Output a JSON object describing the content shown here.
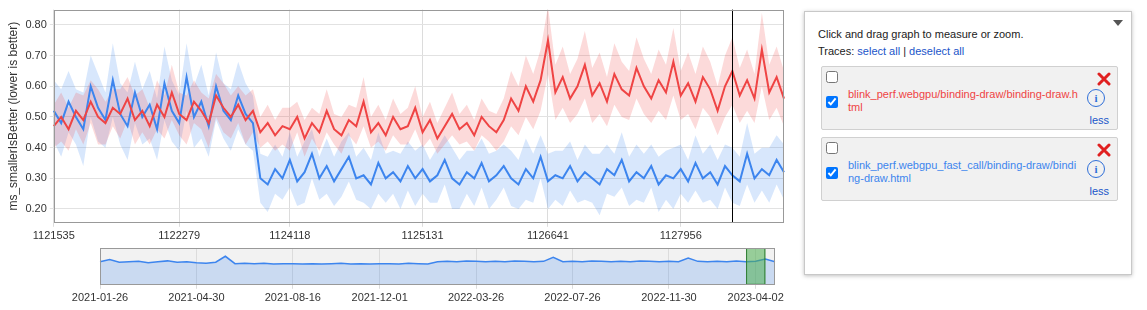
{
  "chart_data": [
    {
      "type": "line",
      "y_label": "ms_smallerIsBetter (lower is better)",
      "categories": [
        "1121535",
        null,
        null,
        null,
        null,
        null,
        null,
        null,
        null,
        null,
        null,
        null,
        null,
        null,
        null,
        null,
        null,
        "1122279",
        null,
        null,
        null,
        null,
        null,
        null,
        null,
        null,
        null,
        null,
        null,
        null,
        null,
        null,
        "1124118",
        null,
        null,
        null,
        null,
        null,
        null,
        null,
        null,
        null,
        null,
        null,
        null,
        null,
        null,
        null,
        null,
        null,
        "1125131",
        null,
        null,
        null,
        null,
        null,
        null,
        null,
        null,
        null,
        null,
        null,
        null,
        null,
        null,
        null,
        null,
        "1126641",
        null,
        null,
        null,
        null,
        null,
        null,
        null,
        null,
        null,
        null,
        null,
        null,
        null,
        null,
        null,
        null,
        null,
        "1127956",
        null,
        null,
        null,
        null,
        null,
        null,
        null,
        null,
        null,
        null,
        null,
        null,
        null,
        null
      ],
      "series": [
        {
          "name": "blink_perf.webgpu/binding-draw/binding-draw.html",
          "color": "#ef4444",
          "values": [
            0.47,
            0.5,
            0.46,
            0.52,
            0.49,
            0.55,
            0.5,
            0.48,
            0.53,
            0.51,
            0.56,
            0.49,
            0.52,
            0.47,
            0.54,
            0.5,
            0.58,
            0.51,
            0.49,
            0.55,
            0.52,
            0.48,
            0.57,
            0.53,
            0.5,
            0.54,
            0.49,
            0.52,
            0.45,
            0.48,
            0.44,
            0.47,
            0.46,
            0.5,
            0.43,
            0.48,
            0.45,
            0.52,
            0.46,
            0.44,
            0.49,
            0.47,
            0.55,
            0.45,
            0.48,
            0.44,
            0.5,
            0.46,
            0.47,
            0.53,
            0.45,
            0.49,
            0.43,
            0.47,
            0.51,
            0.46,
            0.48,
            0.44,
            0.5,
            0.47,
            0.45,
            0.49,
            0.56,
            0.52,
            0.6,
            0.55,
            0.62,
            0.75,
            0.58,
            0.63,
            0.56,
            0.6,
            0.67,
            0.57,
            0.61,
            0.55,
            0.64,
            0.59,
            0.57,
            0.66,
            0.6,
            0.56,
            0.62,
            0.58,
            0.68,
            0.57,
            0.61,
            0.55,
            0.63,
            0.59,
            0.52,
            0.6,
            0.65,
            0.57,
            0.62,
            0.56,
            0.72,
            0.58,
            0.63,
            0.56
          ],
          "errors": [
            0.07,
            0.08,
            0.07,
            0.06,
            0.08,
            0.07,
            0.09,
            0.07,
            0.06,
            0.08,
            0.07,
            0.08,
            0.07,
            0.06,
            0.08,
            0.07,
            0.09,
            0.07,
            0.08,
            0.07,
            0.06,
            0.08,
            0.07,
            0.08,
            0.07,
            0.06,
            0.08,
            0.07,
            0.05,
            0.06,
            0.05,
            0.06,
            0.07,
            0.05,
            0.06,
            0.05,
            0.06,
            0.07,
            0.05,
            0.06,
            0.05,
            0.06,
            0.08,
            0.05,
            0.06,
            0.05,
            0.06,
            0.05,
            0.06,
            0.07,
            0.05,
            0.06,
            0.05,
            0.06,
            0.07,
            0.05,
            0.06,
            0.05,
            0.06,
            0.05,
            0.06,
            0.07,
            0.09,
            0.08,
            0.1,
            0.09,
            0.1,
            0.11,
            0.09,
            0.1,
            0.08,
            0.09,
            0.11,
            0.09,
            0.1,
            0.08,
            0.1,
            0.09,
            0.08,
            0.1,
            0.09,
            0.08,
            0.1,
            0.09,
            0.11,
            0.08,
            0.1,
            0.09,
            0.1,
            0.09,
            0.08,
            0.1,
            0.11,
            0.09,
            0.1,
            0.08,
            0.12,
            0.09,
            0.1,
            0.09
          ]
        },
        {
          "name": "blink_perf.webgpu_fast_call/binding-draw/binding-draw.html",
          "color": "#3d85ee",
          "values": [
            0.52,
            0.48,
            0.55,
            0.5,
            0.46,
            0.6,
            0.53,
            0.49,
            0.62,
            0.51,
            0.47,
            0.58,
            0.5,
            0.54,
            0.46,
            0.61,
            0.52,
            0.48,
            0.63,
            0.5,
            0.55,
            0.47,
            0.6,
            0.52,
            0.49,
            0.57,
            0.51,
            0.48,
            0.3,
            0.28,
            0.33,
            0.3,
            0.36,
            0.29,
            0.32,
            0.38,
            0.3,
            0.34,
            0.29,
            0.33,
            0.37,
            0.3,
            0.31,
            0.28,
            0.35,
            0.3,
            0.32,
            0.29,
            0.34,
            0.3,
            0.33,
            0.29,
            0.31,
            0.36,
            0.3,
            0.28,
            0.32,
            0.3,
            0.35,
            0.29,
            0.31,
            0.34,
            0.3,
            0.28,
            0.33,
            0.3,
            0.37,
            0.29,
            0.31,
            0.3,
            0.34,
            0.29,
            0.32,
            0.3,
            0.28,
            0.33,
            0.31,
            0.36,
            0.29,
            0.32,
            0.3,
            0.34,
            0.28,
            0.31,
            0.3,
            0.33,
            0.29,
            0.35,
            0.3,
            0.32,
            0.28,
            0.34,
            0.31,
            0.29,
            0.38,
            0.3,
            0.33,
            0.31,
            0.36,
            0.32
          ],
          "errors": [
            0.1,
            0.11,
            0.1,
            0.09,
            0.12,
            0.1,
            0.11,
            0.09,
            0.12,
            0.1,
            0.11,
            0.1,
            0.09,
            0.11,
            0.1,
            0.12,
            0.1,
            0.09,
            0.11,
            0.1,
            0.12,
            0.1,
            0.11,
            0.09,
            0.1,
            0.11,
            0.1,
            0.09,
            0.08,
            0.09,
            0.08,
            0.07,
            0.09,
            0.08,
            0.1,
            0.08,
            0.07,
            0.09,
            0.08,
            0.09,
            0.08,
            0.07,
            0.09,
            0.08,
            0.1,
            0.08,
            0.07,
            0.09,
            0.08,
            0.09,
            0.08,
            0.07,
            0.09,
            0.08,
            0.1,
            0.08,
            0.07,
            0.09,
            0.08,
            0.09,
            0.08,
            0.07,
            0.09,
            0.08,
            0.1,
            0.08,
            0.07,
            0.09,
            0.08,
            0.09,
            0.08,
            0.07,
            0.09,
            0.08,
            0.1,
            0.08,
            0.07,
            0.09,
            0.08,
            0.09,
            0.08,
            0.07,
            0.09,
            0.08,
            0.1,
            0.08,
            0.07,
            0.09,
            0.08,
            0.09,
            0.08,
            0.07,
            0.09,
            0.08,
            0.1,
            0.08,
            0.07,
            0.09,
            0.08,
            0.09
          ]
        }
      ],
      "ylim": [
        0.155,
        0.85
      ],
      "yticks": [
        {
          "value": 0.2,
          "label": "0.20"
        },
        {
          "value": 0.3,
          "label": "0.30"
        },
        {
          "value": 0.4,
          "label": "0.40"
        },
        {
          "value": 0.5,
          "label": "0.50"
        },
        {
          "value": 0.6,
          "label": "0.60"
        },
        {
          "value": 0.7,
          "label": "0.70"
        },
        {
          "value": 0.8,
          "label": "0.80"
        }
      ],
      "selected_point": 92,
      "grid": true
    },
    {
      "type": "line",
      "categories": [
        "2021-01-26",
        null,
        null,
        null,
        null,
        null,
        null,
        null,
        null,
        null,
        "2021-04-30",
        null,
        null,
        null,
        null,
        null,
        null,
        null,
        null,
        null,
        "2021-08-16",
        null,
        null,
        null,
        null,
        null,
        null,
        null,
        null,
        "2021-12-01",
        null,
        null,
        null,
        null,
        null,
        null,
        null,
        null,
        null,
        "2022-03-26",
        null,
        null,
        null,
        null,
        null,
        null,
        null,
        null,
        null,
        "2022-07-26",
        null,
        null,
        null,
        null,
        null,
        null,
        null,
        null,
        null,
        "2022-11-30",
        null,
        null,
        null,
        null,
        null,
        null,
        null,
        null,
        "2023-04-02",
        null,
        null
      ],
      "series": [
        {
          "color": "#3d85ee",
          "values": [
            0.5,
            0.55,
            0.49,
            0.5,
            0.51,
            0.48,
            0.5,
            0.52,
            0.49,
            0.5,
            0.48,
            0.47,
            0.49,
            0.62,
            0.46,
            0.47,
            0.46,
            0.47,
            0.45,
            0.46,
            0.46,
            0.45,
            0.46,
            0.45,
            0.46,
            0.47,
            0.45,
            0.46,
            0.45,
            0.46,
            0.46,
            0.45,
            0.47,
            0.46,
            0.45,
            0.5,
            0.51,
            0.5,
            0.52,
            0.51,
            0.5,
            0.51,
            0.5,
            0.52,
            0.51,
            0.5,
            0.51,
            0.6,
            0.5,
            0.51,
            0.5,
            0.52,
            0.51,
            0.5,
            0.51,
            0.5,
            0.52,
            0.51,
            0.5,
            0.51,
            0.5,
            0.58,
            0.51,
            0.5,
            0.51,
            0.5,
            0.52,
            0.5,
            0.51,
            0.56,
            0.5
          ]
        }
      ],
      "ylim": [
        0,
        0.8
      ],
      "selection": [
        67,
        69
      ],
      "tick_labels": "x",
      "grid": true
    }
  ],
  "panel": {
    "instructions": "Click and drag graph to measure or zoom.",
    "traces_label": "Traces:",
    "select_all": "select all",
    "separator": "|",
    "deselect_all": "deselect all",
    "info": "i",
    "less": "less"
  }
}
